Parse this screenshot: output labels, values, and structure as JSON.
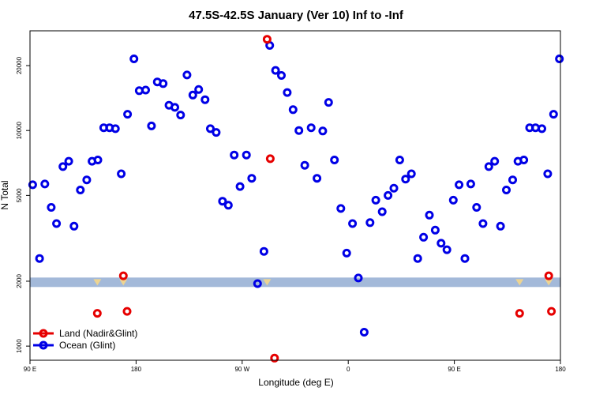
{
  "chart_data": {
    "type": "scatter",
    "title": "47.5S-42.5S January (Ver 10)   Inf to -Inf",
    "xlabel": "Longitude (deg E)",
    "ylabel": "N Total",
    "x_ticks": [
      "90 E",
      "180",
      "90 W",
      "0",
      "90 E",
      "180"
    ],
    "y_ticks": [
      "1000",
      "2000",
      "5000",
      "10000",
      "20000"
    ],
    "ylim": [
      860,
      29000
    ],
    "yscale": "log",
    "band_color": "#a3b9d9",
    "band_range": [
      1880,
      2080
    ],
    "legend_position": "bottom-left",
    "series": [
      {
        "name": "Land (Nadir&Glint)",
        "color": "#e60000",
        "x": [
          0.127,
          0.176,
          0.183,
          0.447,
          0.453,
          0.461,
          0.923,
          0.978,
          0.983
        ],
        "values": [
          1420,
          2120,
          1450,
          26500,
          7400,
          880,
          1420,
          2120,
          1450
        ]
      },
      {
        "name": "Ocean (Glint)",
        "color": "#0000e6",
        "x": [
          0.005,
          0.018,
          0.028,
          0.04,
          0.05,
          0.062,
          0.073,
          0.083,
          0.095,
          0.107,
          0.117,
          0.128,
          0.139,
          0.15,
          0.161,
          0.172,
          0.184,
          0.196,
          0.206,
          0.218,
          0.229,
          0.24,
          0.251,
          0.262,
          0.273,
          0.284,
          0.296,
          0.307,
          0.318,
          0.33,
          0.34,
          0.351,
          0.363,
          0.374,
          0.385,
          0.396,
          0.408,
          0.418,
          0.429,
          0.441,
          0.452,
          0.463,
          0.474,
          0.485,
          0.496,
          0.507,
          0.518,
          0.53,
          0.541,
          0.552,
          0.563,
          0.574,
          0.586,
          0.597,
          0.608,
          0.619,
          0.63,
          0.641,
          0.652,
          0.664,
          0.675,
          0.686,
          0.697,
          0.708,
          0.719,
          0.731,
          0.742,
          0.753,
          0.764,
          0.775,
          0.786,
          0.798,
          0.809,
          0.82,
          0.831,
          0.842,
          0.854,
          0.865,
          0.876,
          0.887,
          0.898,
          0.91,
          0.92,
          0.931,
          0.942,
          0.953,
          0.965,
          0.976,
          0.987,
          0.998
        ],
        "values": [
          5600,
          2550,
          5650,
          4400,
          3700,
          6800,
          7200,
          3600,
          5300,
          5900,
          7200,
          7300,
          10300,
          10300,
          10200,
          6300,
          11900,
          21500,
          15300,
          15400,
          10500,
          16800,
          16500,
          13100,
          12800,
          11800,
          18100,
          14600,
          15500,
          13900,
          10200,
          9800,
          4700,
          4500,
          7700,
          5500,
          7700,
          6000,
          1950,
          2750,
          24800,
          19000,
          18000,
          15000,
          12500,
          10000,
          6900,
          10300,
          6000,
          9950,
          13500,
          7300,
          4350,
          2700,
          3700,
          2070,
          1160,
          3740,
          4750,
          4200,
          5000,
          5400,
          7300,
          5950,
          6300,
          2550,
          3200,
          4050,
          3450,
          3000,
          2800,
          4750,
          5600,
          2550,
          5650,
          4400,
          3700,
          6800,
          7200,
          3600,
          5300,
          5900,
          7200,
          7300,
          10300,
          10300,
          10200,
          6300,
          11900,
          21500
        ]
      }
    ]
  }
}
